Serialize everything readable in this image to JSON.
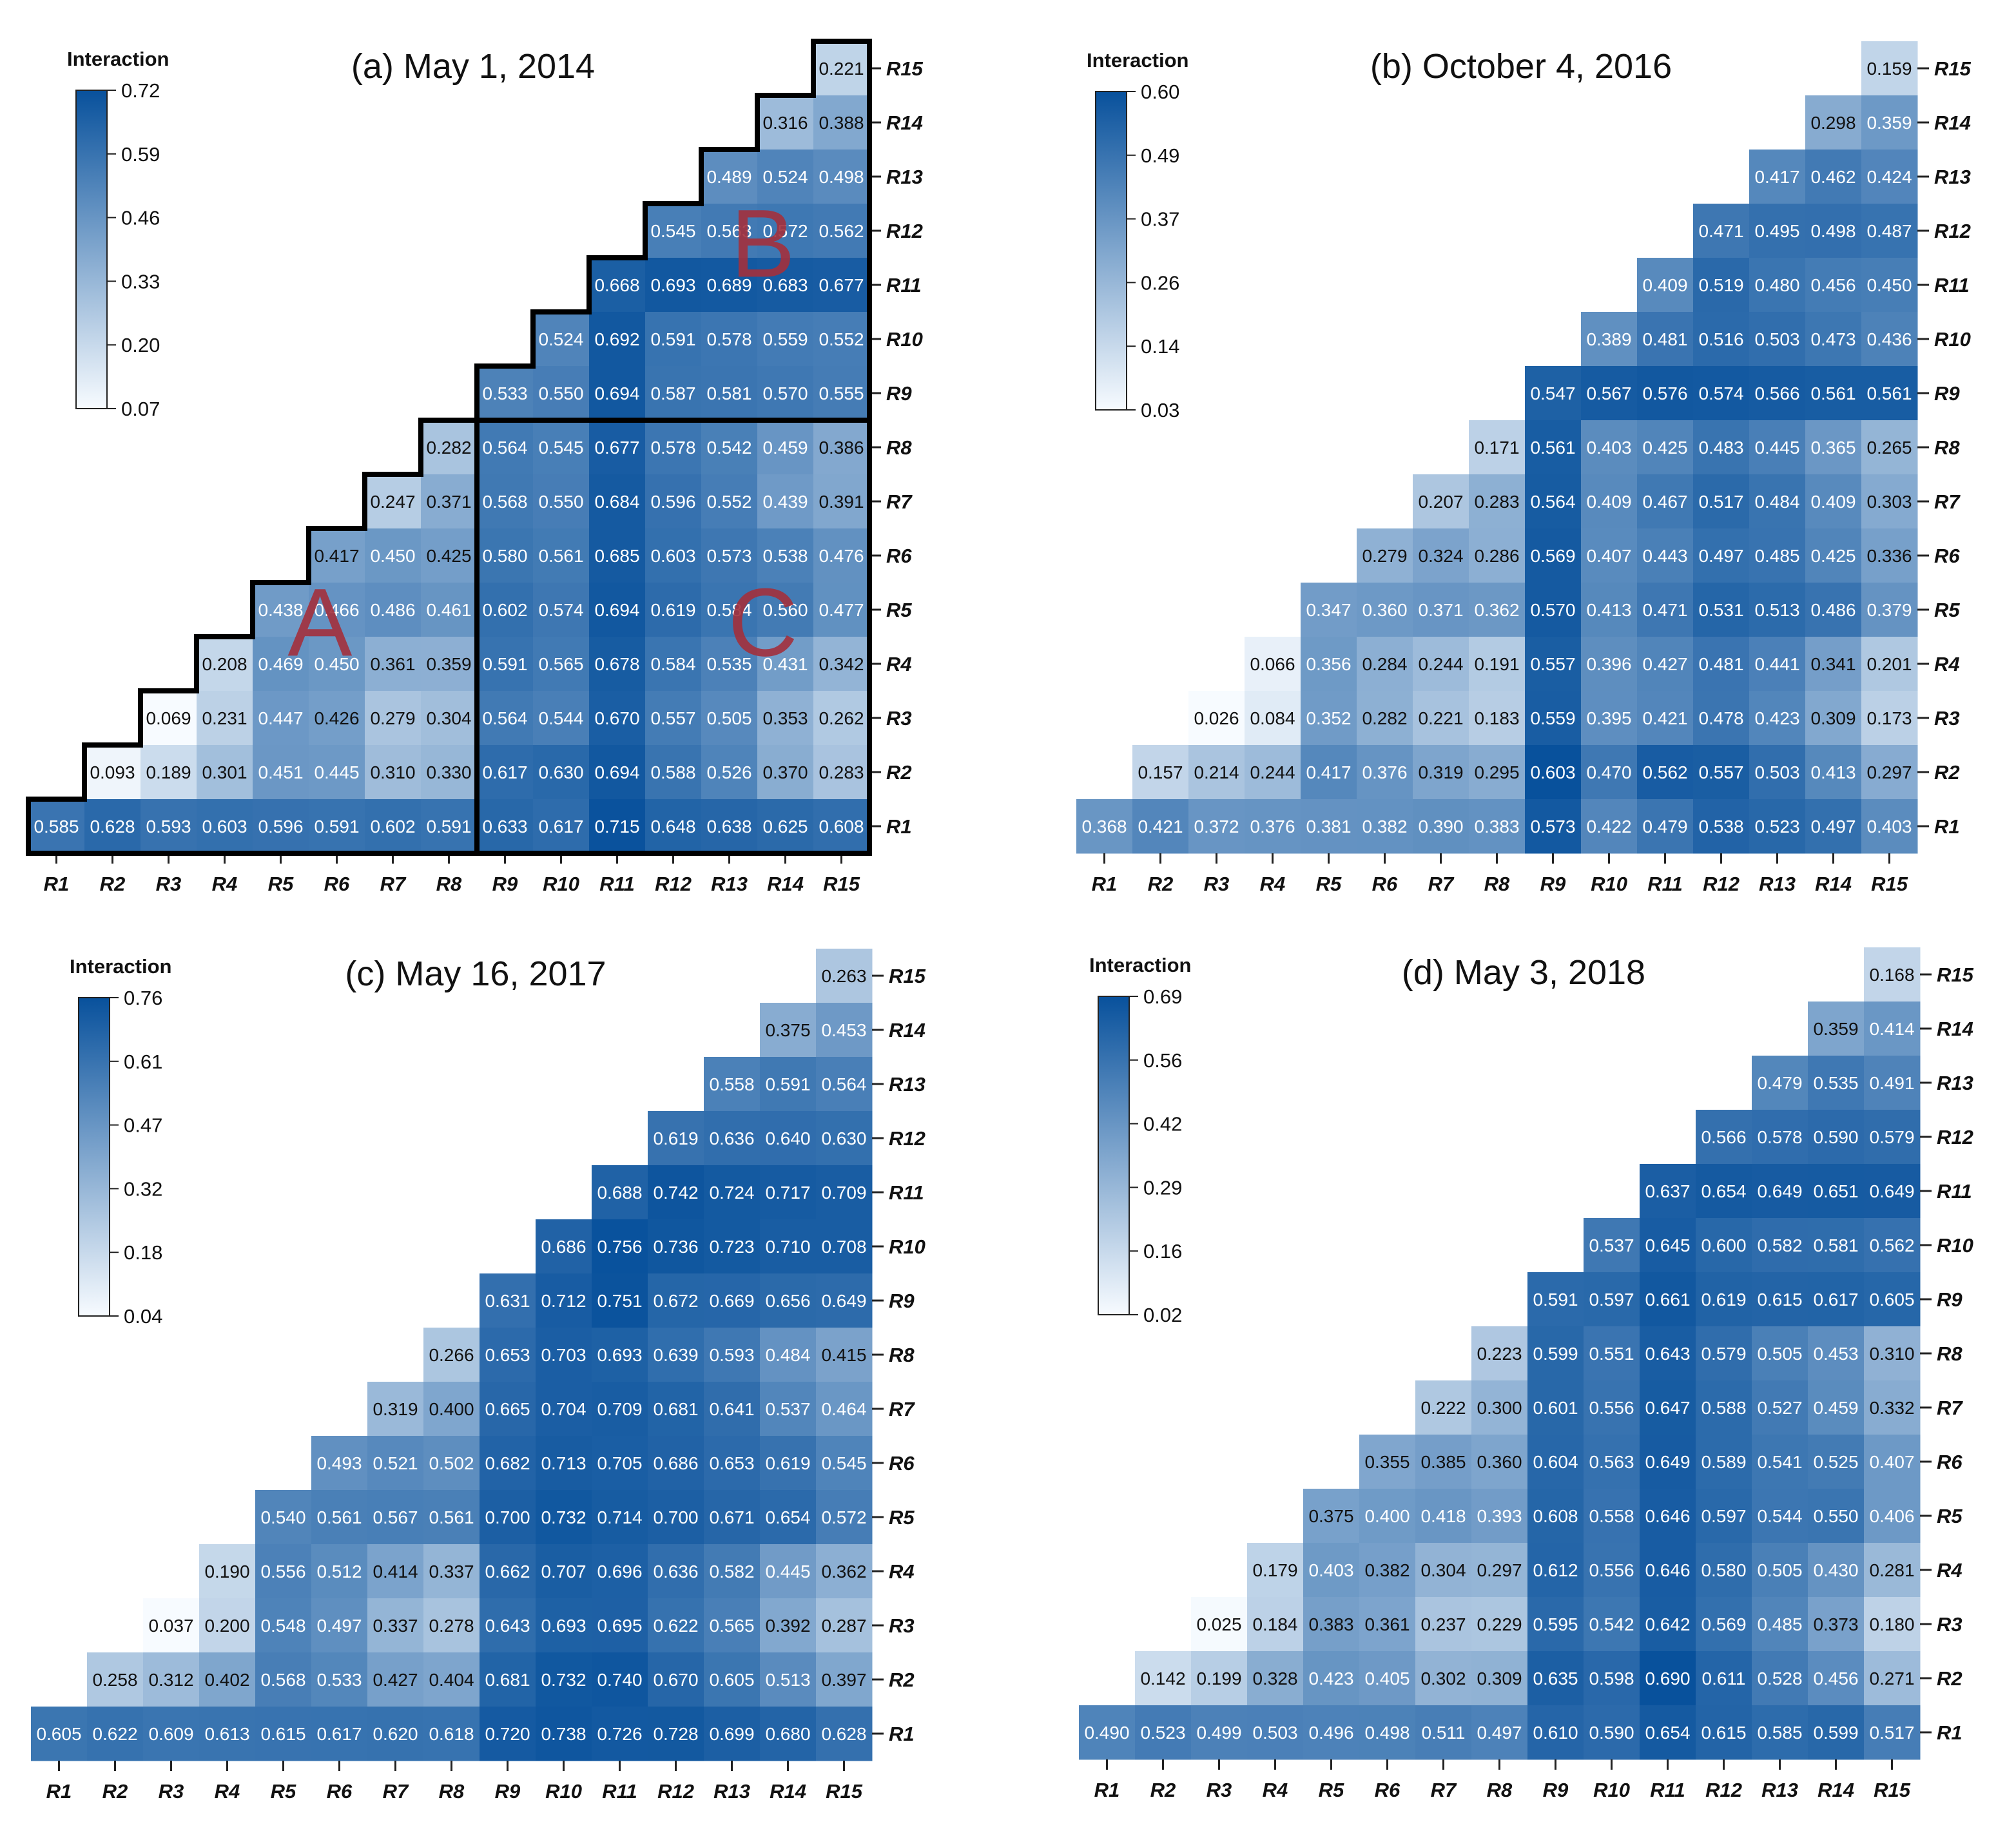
{
  "figure": {
    "labels": [
      "R1",
      "R2",
      "R3",
      "R4",
      "R5",
      "R6",
      "R7",
      "R8",
      "R9",
      "R10",
      "R11",
      "R12",
      "R13",
      "R14",
      "R15"
    ],
    "colors": {
      "low": "#f7fbff",
      "high": "#08519c"
    },
    "region_color": "#a3303c"
  },
  "chart_data": [
    {
      "type": "heatmap",
      "title": "(a) May 1, 2014",
      "legend_title": "Interaction",
      "legend_ticks": [
        "0.72",
        "0.59",
        "0.46",
        "0.33",
        "0.20",
        "0.07"
      ],
      "vmin": 0.07,
      "vmax": 0.72,
      "regions": [
        "A",
        "B",
        "C"
      ],
      "rows": [
        {
          "label": "R15",
          "values": [
            0.221
          ]
        },
        {
          "label": "R14",
          "values": [
            0.316,
            0.388
          ]
        },
        {
          "label": "R13",
          "values": [
            0.489,
            0.524,
            0.498
          ]
        },
        {
          "label": "R12",
          "values": [
            0.545,
            0.563,
            0.572,
            0.562
          ]
        },
        {
          "label": "R11",
          "values": [
            0.668,
            0.693,
            0.689,
            0.683,
            0.677
          ]
        },
        {
          "label": "R10",
          "values": [
            0.524,
            0.692,
            0.591,
            0.578,
            0.559,
            0.552
          ]
        },
        {
          "label": "R9",
          "values": [
            0.533,
            0.55,
            0.694,
            0.587,
            0.581,
            0.57,
            0.555
          ]
        },
        {
          "label": "R8",
          "values": [
            0.282,
            0.564,
            0.545,
            0.677,
            0.578,
            0.542,
            0.459,
            0.386
          ]
        },
        {
          "label": "R7",
          "values": [
            0.247,
            0.371,
            0.568,
            0.55,
            0.684,
            0.596,
            0.552,
            0.439,
            0.391
          ]
        },
        {
          "label": "R6",
          "values": [
            0.417,
            0.45,
            0.425,
            0.58,
            0.561,
            0.685,
            0.603,
            0.573,
            0.538,
            0.476
          ]
        },
        {
          "label": "R5",
          "values": [
            0.438,
            0.466,
            0.486,
            0.461,
            0.602,
            0.574,
            0.694,
            0.619,
            0.584,
            0.56,
            0.477
          ]
        },
        {
          "label": "R4",
          "values": [
            0.208,
            0.469,
            0.45,
            0.361,
            0.359,
            0.591,
            0.565,
            0.678,
            0.584,
            0.535,
            0.431,
            0.342
          ]
        },
        {
          "label": "R3",
          "values": [
            0.069,
            0.231,
            0.447,
            0.426,
            0.279,
            0.304,
            0.564,
            0.544,
            0.67,
            0.557,
            0.505,
            0.353,
            0.262
          ]
        },
        {
          "label": "R2",
          "values": [
            0.093,
            0.189,
            0.301,
            0.451,
            0.445,
            0.31,
            0.33,
            0.617,
            0.63,
            0.694,
            0.588,
            0.526,
            0.37,
            0.283
          ]
        },
        {
          "label": "R1",
          "values": [
            0.585,
            0.628,
            0.593,
            0.603,
            0.596,
            0.591,
            0.602,
            0.591,
            0.633,
            0.617,
            0.715,
            0.648,
            0.638,
            0.625,
            0.608
          ]
        }
      ]
    },
    {
      "type": "heatmap",
      "title": "(b) October 4, 2016",
      "legend_title": "Interaction",
      "legend_ticks": [
        "0.60",
        "0.49",
        "0.37",
        "0.26",
        "0.14",
        "0.03"
      ],
      "vmin": 0.03,
      "vmax": 0.6,
      "regions": [],
      "rows": [
        {
          "label": "R15",
          "values": [
            0.159
          ]
        },
        {
          "label": "R14",
          "values": [
            0.298,
            0.359
          ]
        },
        {
          "label": "R13",
          "values": [
            0.417,
            0.462,
            0.424
          ]
        },
        {
          "label": "R12",
          "values": [
            0.471,
            0.495,
            0.498,
            0.487
          ]
        },
        {
          "label": "R11",
          "values": [
            0.409,
            0.519,
            0.48,
            0.456,
            0.45
          ]
        },
        {
          "label": "R10",
          "values": [
            0.389,
            0.481,
            0.516,
            0.503,
            0.473,
            0.436
          ]
        },
        {
          "label": "R9",
          "values": [
            0.547,
            0.567,
            0.576,
            0.574,
            0.566,
            0.561,
            0.561
          ]
        },
        {
          "label": "R8",
          "values": [
            0.171,
            0.561,
            0.403,
            0.425,
            0.483,
            0.445,
            0.365,
            0.265
          ]
        },
        {
          "label": "R7",
          "values": [
            0.207,
            0.283,
            0.564,
            0.409,
            0.467,
            0.517,
            0.484,
            0.409,
            0.303
          ]
        },
        {
          "label": "R6",
          "values": [
            0.279,
            0.324,
            0.286,
            0.569,
            0.407,
            0.443,
            0.497,
            0.485,
            0.425,
            0.336
          ]
        },
        {
          "label": "R5",
          "values": [
            0.347,
            0.36,
            0.371,
            0.362,
            0.57,
            0.413,
            0.471,
            0.531,
            0.513,
            0.486,
            0.379
          ]
        },
        {
          "label": "R4",
          "values": [
            0.066,
            0.356,
            0.284,
            0.244,
            0.191,
            0.557,
            0.396,
            0.427,
            0.481,
            0.441,
            0.341,
            0.201
          ]
        },
        {
          "label": "R3",
          "values": [
            0.026,
            0.084,
            0.352,
            0.282,
            0.221,
            0.183,
            0.559,
            0.395,
            0.421,
            0.478,
            0.423,
            0.309,
            0.173
          ]
        },
        {
          "label": "R2",
          "values": [
            0.157,
            0.214,
            0.244,
            0.417,
            0.376,
            0.319,
            0.295,
            0.603,
            0.47,
            0.562,
            0.557,
            0.503,
            0.413,
            0.297
          ]
        },
        {
          "label": "R1",
          "values": [
            0.368,
            0.421,
            0.372,
            0.376,
            0.381,
            0.382,
            0.39,
            0.383,
            0.573,
            0.422,
            0.479,
            0.538,
            0.523,
            0.497,
            0.403
          ]
        }
      ]
    },
    {
      "type": "heatmap",
      "title": "(c) May 16, 2017",
      "legend_title": "Interaction",
      "legend_ticks": [
        "0.76",
        "0.61",
        "0.47",
        "0.32",
        "0.18",
        "0.04"
      ],
      "vmin": 0.04,
      "vmax": 0.76,
      "regions": [],
      "rows": [
        {
          "label": "R15",
          "values": [
            0.263
          ]
        },
        {
          "label": "R14",
          "values": [
            0.375,
            0.453
          ]
        },
        {
          "label": "R13",
          "values": [
            0.558,
            0.591,
            0.564
          ]
        },
        {
          "label": "R12",
          "values": [
            0.619,
            0.636,
            0.64,
            0.63
          ]
        },
        {
          "label": "R11",
          "values": [
            0.688,
            0.742,
            0.724,
            0.717,
            0.709
          ]
        },
        {
          "label": "R10",
          "values": [
            0.686,
            0.756,
            0.736,
            0.723,
            0.71,
            0.708
          ]
        },
        {
          "label": "R9",
          "values": [
            0.631,
            0.712,
            0.751,
            0.672,
            0.669,
            0.656,
            0.649
          ]
        },
        {
          "label": "R8",
          "values": [
            0.266,
            0.653,
            0.703,
            0.693,
            0.639,
            0.593,
            0.484,
            0.415
          ]
        },
        {
          "label": "R7",
          "values": [
            0.319,
            0.4,
            0.665,
            0.704,
            0.709,
            0.681,
            0.641,
            0.537,
            0.464
          ]
        },
        {
          "label": "R6",
          "values": [
            0.493,
            0.521,
            0.502,
            0.682,
            0.713,
            0.705,
            0.686,
            0.653,
            0.619,
            0.545
          ]
        },
        {
          "label": "R5",
          "values": [
            0.54,
            0.561,
            0.567,
            0.561,
            0.7,
            0.732,
            0.714,
            0.7,
            0.671,
            0.654,
            0.572
          ]
        },
        {
          "label": "R4",
          "values": [
            0.19,
            0.556,
            0.512,
            0.414,
            0.337,
            0.662,
            0.707,
            0.696,
            0.636,
            0.582,
            0.445,
            0.362
          ]
        },
        {
          "label": "R3",
          "values": [
            0.037,
            0.2,
            0.548,
            0.497,
            0.337,
            0.278,
            0.643,
            0.693,
            0.695,
            0.622,
            0.565,
            0.392,
            0.287
          ]
        },
        {
          "label": "R2",
          "values": [
            0.258,
            0.312,
            0.402,
            0.568,
            0.533,
            0.427,
            0.404,
            0.681,
            0.732,
            0.74,
            0.67,
            0.605,
            0.513,
            0.397
          ]
        },
        {
          "label": "R1",
          "values": [
            0.605,
            0.622,
            0.609,
            0.613,
            0.615,
            0.617,
            0.62,
            0.618,
            0.72,
            0.738,
            0.726,
            0.728,
            0.699,
            0.68,
            0.628
          ]
        }
      ]
    },
    {
      "type": "heatmap",
      "title": "(d) May 3, 2018",
      "legend_title": "Interaction",
      "legend_ticks": [
        "0.69",
        "0.56",
        "0.42",
        "0.29",
        "0.16",
        "0.02"
      ],
      "vmin": 0.02,
      "vmax": 0.69,
      "regions": [],
      "rows": [
        {
          "label": "R15",
          "values": [
            0.168
          ]
        },
        {
          "label": "R14",
          "values": [
            0.359,
            0.414
          ]
        },
        {
          "label": "R13",
          "values": [
            0.479,
            0.535,
            0.491
          ]
        },
        {
          "label": "R12",
          "values": [
            0.566,
            0.578,
            0.59,
            0.579
          ]
        },
        {
          "label": "R11",
          "values": [
            0.637,
            0.654,
            0.649,
            0.651,
            0.649
          ]
        },
        {
          "label": "R10",
          "values": [
            0.537,
            0.645,
            0.6,
            0.582,
            0.581,
            0.562
          ]
        },
        {
          "label": "R9",
          "values": [
            0.591,
            0.597,
            0.661,
            0.619,
            0.615,
            0.617,
            0.605
          ]
        },
        {
          "label": "R8",
          "values": [
            0.223,
            0.599,
            0.551,
            0.643,
            0.579,
            0.505,
            0.453,
            0.31
          ]
        },
        {
          "label": "R7",
          "values": [
            0.222,
            0.3,
            0.601,
            0.556,
            0.647,
            0.588,
            0.527,
            0.459,
            0.332
          ]
        },
        {
          "label": "R6",
          "values": [
            0.355,
            0.385,
            0.36,
            0.604,
            0.563,
            0.649,
            0.589,
            0.541,
            0.525,
            0.407
          ]
        },
        {
          "label": "R5",
          "values": [
            0.375,
            0.4,
            0.418,
            0.393,
            0.608,
            0.558,
            0.646,
            0.597,
            0.544,
            0.55,
            0.406
          ]
        },
        {
          "label": "R4",
          "values": [
            0.179,
            0.403,
            0.382,
            0.304,
            0.297,
            0.612,
            0.556,
            0.646,
            0.58,
            0.505,
            0.43,
            0.281
          ]
        },
        {
          "label": "R3",
          "values": [
            0.025,
            0.184,
            0.383,
            0.361,
            0.237,
            0.229,
            0.595,
            0.542,
            0.642,
            0.569,
            0.485,
            0.373,
            0.18
          ]
        },
        {
          "label": "R2",
          "values": [
            0.142,
            0.199,
            0.328,
            0.423,
            0.405,
            0.302,
            0.309,
            0.635,
            0.598,
            0.69,
            0.611,
            0.528,
            0.456,
            0.271
          ]
        },
        {
          "label": "R1",
          "values": [
            0.49,
            0.523,
            0.499,
            0.503,
            0.496,
            0.498,
            0.511,
            0.497,
            0.61,
            0.59,
            0.654,
            0.615,
            0.585,
            0.599,
            0.517
          ]
        }
      ]
    }
  ]
}
